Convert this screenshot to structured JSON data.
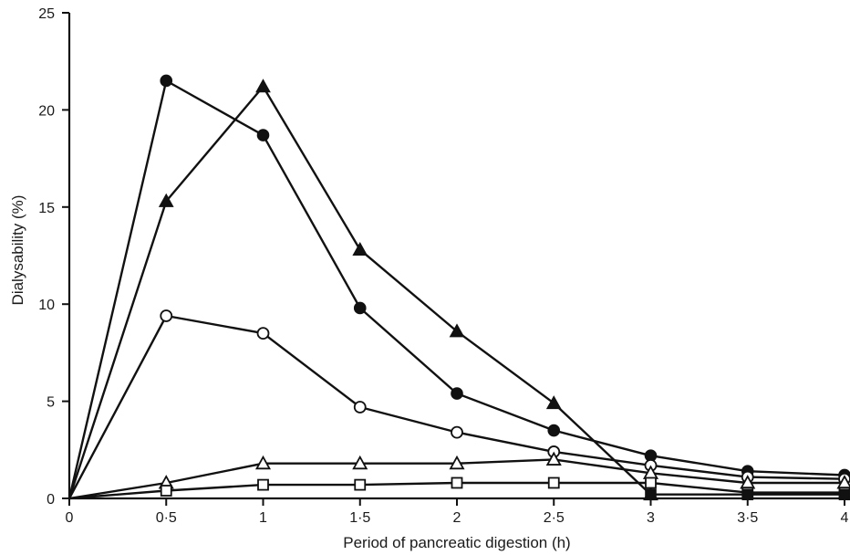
{
  "chart_data": {
    "type": "line",
    "xlabel": "Period of pancreatic digestion (h)",
    "ylabel": "Dialysability (%)",
    "xlim": [
      0,
      4
    ],
    "ylim": [
      0,
      25
    ],
    "x_ticks": [
      0,
      0.5,
      1,
      1.5,
      2,
      2.5,
      3,
      3.5,
      4
    ],
    "x_tick_labels": [
      "0",
      "0·5",
      "1",
      "1·5",
      "2",
      "2·5",
      "3",
      "3·5",
      "4"
    ],
    "y_ticks": [
      0,
      5,
      10,
      15,
      20,
      25
    ],
    "y_tick_labels": [
      "0",
      "5",
      "10",
      "15",
      "20",
      "25"
    ],
    "grid": false,
    "legend": "none",
    "series": [
      {
        "marker": "filled-circle",
        "x": [
          0,
          0.5,
          1,
          1.5,
          2,
          2.5,
          3,
          3.5,
          4
        ],
        "values": [
          0,
          21.5,
          18.7,
          9.8,
          5.4,
          3.5,
          2.2,
          1.4,
          1.2
        ]
      },
      {
        "marker": "filled-triangle",
        "x": [
          0,
          0.5,
          1,
          1.5,
          2,
          2.5,
          3
        ],
        "values": [
          0,
          15.3,
          21.2,
          12.8,
          8.6,
          4.9,
          0.2
        ]
      },
      {
        "marker": "open-circle",
        "x": [
          0,
          0.5,
          1,
          1.5,
          2,
          2.5,
          3,
          3.5,
          4
        ],
        "values": [
          0,
          9.4,
          8.5,
          4.7,
          3.4,
          2.4,
          1.7,
          1.1,
          1.0
        ]
      },
      {
        "marker": "open-triangle",
        "x": [
          0,
          0.5,
          1,
          1.5,
          2,
          2.5,
          3,
          3.5,
          4
        ],
        "values": [
          0,
          0.8,
          1.8,
          1.8,
          1.8,
          2.0,
          1.3,
          0.8,
          0.8
        ]
      },
      {
        "marker": "open-square",
        "x": [
          0,
          0.5,
          1,
          1.5,
          2,
          2.5,
          3,
          3.5,
          4
        ],
        "values": [
          0,
          0.4,
          0.7,
          0.7,
          0.8,
          0.8,
          0.8,
          0.3,
          0.3
        ]
      },
      {
        "marker": "filled-square",
        "x": [
          3,
          3.5,
          4
        ],
        "values": [
          0.2,
          0.2,
          0.2
        ]
      }
    ]
  }
}
